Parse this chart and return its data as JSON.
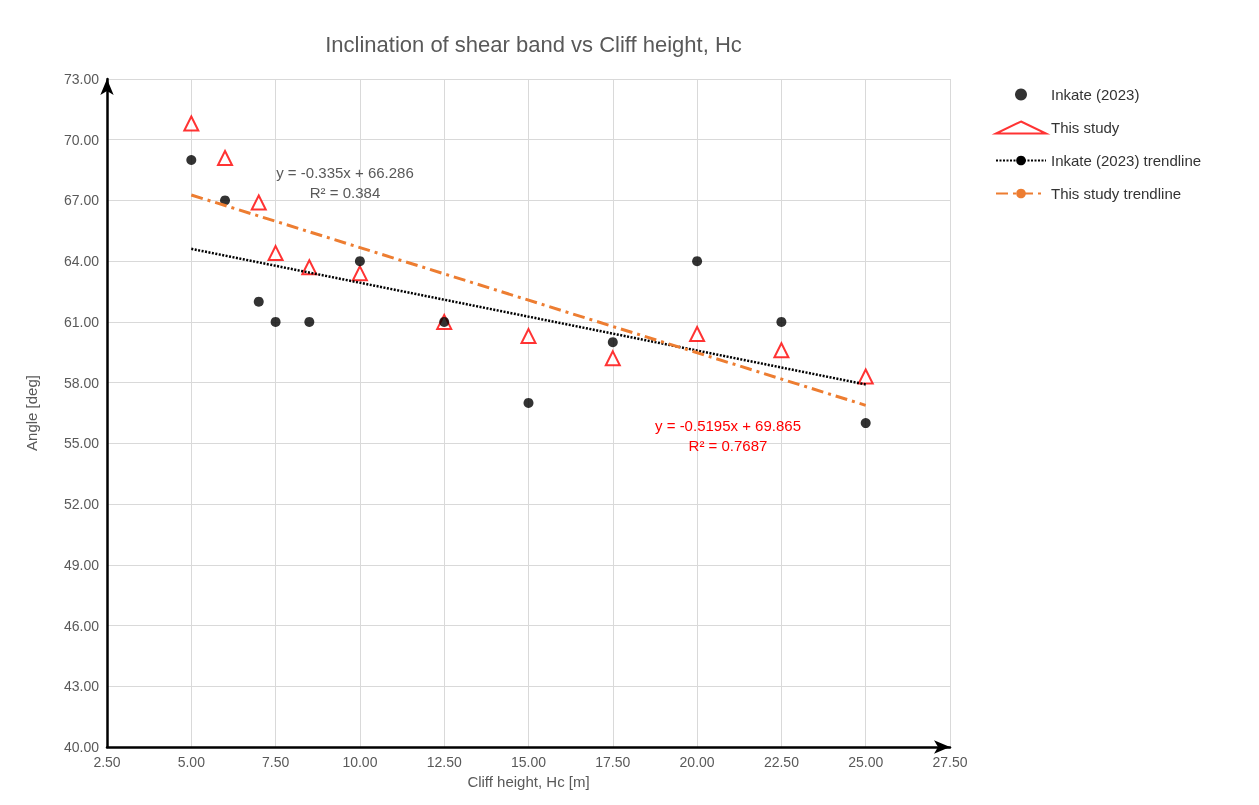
{
  "chart_data": {
    "type": "scatter",
    "title": "Inclination of shear band vs Cliff height, Hc",
    "xlabel": "Cliff height, Hc [m]",
    "ylabel": "Angle [deg]",
    "series": [
      {
        "name": "Inkate (2023)",
        "marker": "circle",
        "color": "#000000",
        "x": [
          5,
          6,
          7,
          7.5,
          8.5,
          10,
          12.5,
          15,
          17.5,
          20,
          22.5,
          25
        ],
        "values": [
          69,
          67,
          62,
          61,
          61,
          64,
          61,
          57,
          60,
          64,
          61,
          56
        ]
      },
      {
        "name": "This study",
        "marker": "triangle",
        "color": "#ff0000",
        "x": [
          5,
          6,
          7,
          7.5,
          8.5,
          10,
          12.5,
          15,
          17.5,
          20,
          22.5,
          25
        ],
        "values": [
          70.8,
          69.1,
          66.9,
          64.4,
          63.7,
          63.4,
          61.0,
          60.3,
          59.2,
          60.4,
          59.6,
          58.3
        ]
      },
      {
        "name": "Inkate (2023) trendline",
        "type": "line",
        "marker": "none",
        "line_style": "dotted",
        "color": "#000000",
        "x": [
          5,
          25
        ],
        "values": [
          64.61,
          57.91
        ]
      },
      {
        "name": "This study trendline",
        "type": "line",
        "marker": "none",
        "line_style": "dashed",
        "color": "#ed7d31",
        "x": [
          5,
          25
        ],
        "values": [
          67.27,
          56.88
        ]
      }
    ],
    "annotations": [
      "y = -0.335x + 66.286\nR² = 0.384",
      "y = -0.5195x + 69.865\nR² = 0.7687"
    ],
    "xlim": [
      2.5,
      27.5
    ],
    "xticks": [
      {
        "value": 2.5,
        "label": "2.50"
      },
      {
        "value": 5,
        "label": "5.00"
      },
      {
        "value": 7.5,
        "label": "7.50"
      },
      {
        "value": 10,
        "label": "10.00"
      },
      {
        "value": 12.5,
        "label": "12.50"
      },
      {
        "value": 15,
        "label": "15.00"
      },
      {
        "value": 17.5,
        "label": "17.50"
      },
      {
        "value": 20,
        "label": "20.00"
      },
      {
        "value": 22.5,
        "label": "22.50"
      },
      {
        "value": 25,
        "label": "25.00"
      },
      {
        "value": 27.5,
        "label": "27.50"
      }
    ],
    "ylim": [
      40,
      73
    ],
    "yticks": [
      {
        "value": 40,
        "label": "40.00"
      },
      {
        "value": 43,
        "label": "43.00"
      },
      {
        "value": 46,
        "label": "46.00"
      },
      {
        "value": 49,
        "label": "49.00"
      },
      {
        "value": 52,
        "label": "52.00"
      },
      {
        "value": 55,
        "label": "55.00"
      },
      {
        "value": 58,
        "label": "58.00"
      },
      {
        "value": 61,
        "label": "61.00"
      },
      {
        "value": 64,
        "label": "64.00"
      },
      {
        "value": 67,
        "label": "67.00"
      },
      {
        "value": 70,
        "label": "70.00"
      },
      {
        "value": 73,
        "label": "73.00"
      }
    ],
    "grid": true,
    "legend": "right"
  }
}
